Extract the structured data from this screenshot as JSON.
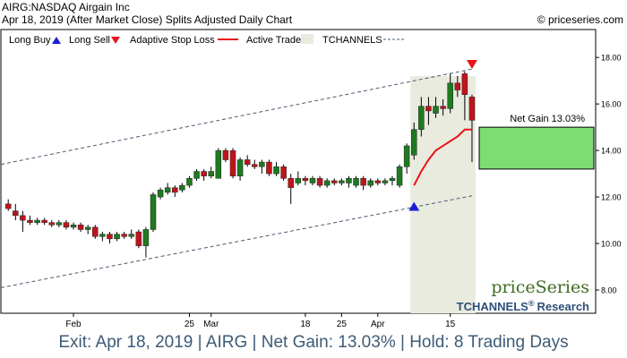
{
  "header": {
    "title": "AIRG:NASDAQ Airgain Inc",
    "subtitle": "Apr 18, 2019 (After Market Close)  Splits Adjusted Daily Chart",
    "copyright": "© priceseries.com"
  },
  "legend": {
    "long_buy": "Long Buy",
    "long_sell": "Long Sell",
    "adaptive_stop": "Adaptive Stop Loss",
    "active_trade": "Active Trade",
    "tchannels": "TCHANNELS"
  },
  "brand": {
    "name": "priceSeries",
    "research": "TCHANNELS",
    "reg": "®",
    "research_suffix": "Research"
  },
  "net_gain_label": "Net Gain 13.03%",
  "footer": "Exit: Apr 18, 2019 | AIRG | Net Gain: 13.03% | Hold: 8 Trading Days",
  "colors": {
    "up": "#1e7a1e",
    "down": "#c0141a",
    "stop": "#e8141a",
    "active_bg": "#e9ebdf",
    "gain_box": "#7ddc72",
    "channel": "#4a5a70"
  },
  "chart_data": {
    "type": "candlestick",
    "ylim": [
      7.0,
      19.2
    ],
    "yticks": [
      8,
      10,
      12,
      14,
      16,
      18
    ],
    "ytick_labels": [
      "8.00",
      "10.00",
      "12.00",
      "14.00",
      "16.00",
      "18.00"
    ],
    "xticks": [
      {
        "index": 9,
        "label": "Feb"
      },
      {
        "index": 25,
        "label": "25"
      },
      {
        "index": 28,
        "label": "Mar"
      },
      {
        "index": 41,
        "label": "18"
      },
      {
        "index": 46,
        "label": "25"
      },
      {
        "index": 51,
        "label": "Apr"
      },
      {
        "index": 61,
        "label": "15"
      }
    ],
    "candles": [
      [
        11.7,
        11.5,
        11.9,
        11.4
      ],
      [
        11.4,
        11.2,
        11.7,
        11.0
      ],
      [
        11.2,
        11.0,
        11.4,
        10.5
      ],
      [
        11.0,
        10.9,
        11.2,
        10.8
      ],
      [
        10.9,
        11.0,
        11.1,
        10.8
      ],
      [
        11.0,
        10.9,
        11.1,
        10.8
      ],
      [
        10.9,
        10.8,
        11.0,
        10.7
      ],
      [
        10.8,
        10.9,
        11.0,
        10.7
      ],
      [
        10.9,
        10.7,
        11.0,
        10.6
      ],
      [
        10.7,
        10.8,
        10.9,
        10.6
      ],
      [
        10.8,
        10.6,
        10.9,
        10.5
      ],
      [
        10.6,
        10.7,
        10.8,
        10.4
      ],
      [
        10.7,
        10.3,
        10.8,
        10.2
      ],
      [
        10.3,
        10.4,
        10.5,
        10.1
      ],
      [
        10.4,
        10.2,
        10.5,
        10.0
      ],
      [
        10.2,
        10.4,
        10.5,
        10.1
      ],
      [
        10.4,
        10.3,
        10.5,
        10.2
      ],
      [
        10.3,
        10.4,
        10.6,
        10.2
      ],
      [
        10.5,
        9.9,
        10.6,
        9.8
      ],
      [
        9.9,
        10.6,
        10.7,
        9.4
      ],
      [
        10.6,
        12.1,
        12.2,
        10.5
      ],
      [
        12.0,
        12.3,
        12.4,
        11.9
      ],
      [
        12.2,
        12.4,
        12.6,
        12.1
      ],
      [
        12.4,
        12.2,
        12.5,
        12.0
      ],
      [
        12.3,
        12.5,
        12.6,
        12.2
      ],
      [
        12.5,
        12.8,
        12.9,
        12.4
      ],
      [
        12.8,
        13.1,
        13.2,
        12.7
      ],
      [
        13.1,
        12.9,
        13.2,
        12.7
      ],
      [
        12.9,
        13.1,
        13.3,
        12.8
      ],
      [
        12.8,
        14.0,
        14.1,
        12.8
      ],
      [
        14.0,
        13.6,
        14.1,
        13.5
      ],
      [
        14.0,
        12.9,
        14.1,
        12.8
      ],
      [
        12.9,
        13.6,
        13.7,
        12.7
      ],
      [
        13.6,
        13.4,
        13.8,
        13.3
      ],
      [
        13.4,
        13.3,
        13.6,
        13.2
      ],
      [
        13.3,
        13.5,
        13.6,
        13.0
      ],
      [
        13.5,
        13.0,
        13.6,
        12.9
      ],
      [
        13.0,
        13.3,
        13.5,
        12.9
      ],
      [
        13.3,
        12.8,
        13.4,
        12.7
      ],
      [
        12.8,
        12.4,
        13.0,
        11.7
      ],
      [
        12.6,
        12.8,
        13.1,
        12.5
      ],
      [
        12.8,
        12.7,
        12.9,
        12.5
      ],
      [
        12.6,
        12.8,
        12.9,
        12.5
      ],
      [
        12.8,
        12.5,
        12.9,
        12.4
      ],
      [
        12.5,
        12.7,
        12.8,
        12.4
      ],
      [
        12.7,
        12.6,
        12.8,
        12.5
      ],
      [
        12.6,
        12.7,
        12.8,
        12.5
      ],
      [
        12.6,
        12.8,
        12.9,
        12.4
      ],
      [
        12.5,
        12.8,
        12.9,
        12.4
      ],
      [
        12.8,
        12.5,
        12.9,
        12.3
      ],
      [
        12.5,
        12.7,
        12.8,
        12.4
      ],
      [
        12.7,
        12.6,
        12.8,
        12.5
      ],
      [
        12.6,
        12.7,
        12.8,
        12.5
      ],
      [
        12.7,
        12.8,
        12.9,
        12.5
      ],
      [
        12.5,
        13.3,
        13.4,
        12.4
      ],
      [
        13.3,
        14.2,
        14.3,
        13.0
      ],
      [
        13.8,
        14.9,
        15.2,
        13.6
      ],
      [
        14.9,
        15.9,
        16.3,
        14.6
      ],
      [
        15.9,
        15.7,
        16.3,
        15.1
      ],
      [
        15.6,
        15.9,
        16.3,
        15.4
      ],
      [
        15.9,
        15.8,
        16.2,
        15.5
      ],
      [
        15.8,
        16.9,
        17.3,
        15.6
      ],
      [
        16.9,
        16.6,
        17.2,
        16.3
      ],
      [
        17.3,
        16.4,
        17.4,
        15.3
      ],
      [
        16.3,
        15.3,
        16.4,
        13.5
      ]
    ],
    "stop_loss": [
      [
        56,
        12.5
      ],
      [
        57,
        13.1
      ],
      [
        58,
        13.6
      ],
      [
        59,
        14.0
      ],
      [
        60,
        14.2
      ],
      [
        61,
        14.4
      ],
      [
        62,
        14.6
      ],
      [
        63,
        14.9
      ],
      [
        64,
        14.9
      ]
    ],
    "entry": {
      "index": 56,
      "price": 11.6
    },
    "exit": {
      "index": 64,
      "price": 17.7
    },
    "active_range": [
      56,
      64
    ],
    "channel_upper": [
      [
        -1,
        13.4
      ],
      [
        64,
        17.5
      ]
    ],
    "channel_lower": [
      [
        -1,
        8.1
      ],
      [
        64,
        12.05
      ]
    ],
    "gain_box": {
      "low": 13.2,
      "high": 15.0
    }
  }
}
